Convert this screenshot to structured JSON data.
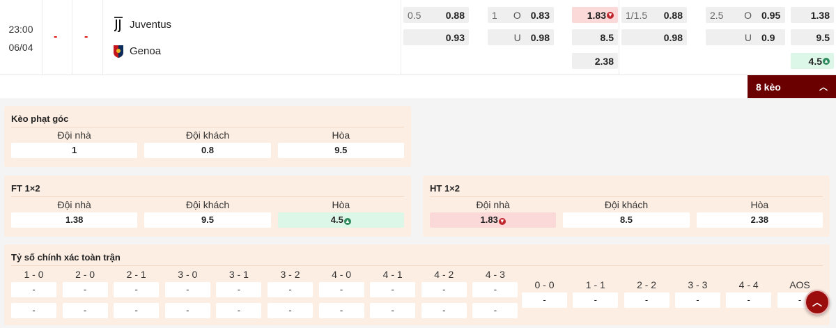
{
  "match": {
    "time": "23:00",
    "date": "06/04",
    "score_ft": "-",
    "score_ht": "-",
    "home": "Juventus",
    "away": "Genoa"
  },
  "odds": {
    "ft_handicap": {
      "line": "0.5",
      "home": "0.88",
      "away": "0.93"
    },
    "ft_ou": {
      "line": "1",
      "over_label": "O",
      "over": "0.83",
      "under_label": "U",
      "under": "0.98"
    },
    "ht_1x2": {
      "home": "1.83",
      "away": "8.5",
      "draw": "2.38",
      "home_trend": "down"
    },
    "ht_handicap": {
      "line": "1/1.5",
      "home": "0.88",
      "away": "0.98"
    },
    "ht_ou": {
      "line": "2.5",
      "over_label": "O",
      "over": "0.95",
      "under_label": "U",
      "under": "0.9"
    },
    "ft_1x2": {
      "home": "1.38",
      "away": "9.5",
      "draw": "4.5",
      "draw_trend": "up"
    }
  },
  "more_button": "8 kèo",
  "colors": {
    "accent": "#6b0000",
    "down": "#fbd9d9",
    "up": "#dcf6e8",
    "card": "#fdeee3"
  },
  "corner": {
    "title": "Kèo phạt góc",
    "cols": [
      {
        "label": "Đội nhà",
        "value": "1"
      },
      {
        "label": "Đội khách",
        "value": "0.8"
      },
      {
        "label": "Hòa",
        "value": "9.5"
      }
    ]
  },
  "ft": {
    "title": "FT 1×2",
    "cols": [
      {
        "label": "Đội nhà",
        "value": "1.38"
      },
      {
        "label": "Đội khách",
        "value": "9.5"
      },
      {
        "label": "Hòa",
        "value": "4.5"
      }
    ]
  },
  "ht": {
    "title": "HT 1×2",
    "cols": [
      {
        "label": "Đội nhà",
        "value": "1.83"
      },
      {
        "label": "Đội khách",
        "value": "8.5"
      },
      {
        "label": "Hòa",
        "value": "2.38"
      }
    ]
  },
  "correct_score": {
    "title": "Tỷ số chính xác toàn trận",
    "pairs": [
      {
        "label": "1 - 0",
        "a": "-",
        "b": "-"
      },
      {
        "label": "2 - 0",
        "a": "-",
        "b": "-"
      },
      {
        "label": "2 - 1",
        "a": "-",
        "b": "-"
      },
      {
        "label": "3 - 0",
        "a": "-",
        "b": "-"
      },
      {
        "label": "3 - 1",
        "a": "-",
        "b": "-"
      },
      {
        "label": "3 - 2",
        "a": "-",
        "b": "-"
      },
      {
        "label": "4 - 0",
        "a": "-",
        "b": "-"
      },
      {
        "label": "4 - 1",
        "a": "-",
        "b": "-"
      },
      {
        "label": "4 - 2",
        "a": "-",
        "b": "-"
      },
      {
        "label": "4 - 3",
        "a": "-",
        "b": "-"
      }
    ],
    "draws": [
      {
        "label": "0 - 0",
        "v": "-"
      },
      {
        "label": "1 - 1",
        "v": "-"
      },
      {
        "label": "2 - 2",
        "v": "-"
      },
      {
        "label": "3 - 3",
        "v": "-"
      },
      {
        "label": "4 - 4",
        "v": "-"
      },
      {
        "label": "AOS",
        "v": "-"
      }
    ]
  }
}
